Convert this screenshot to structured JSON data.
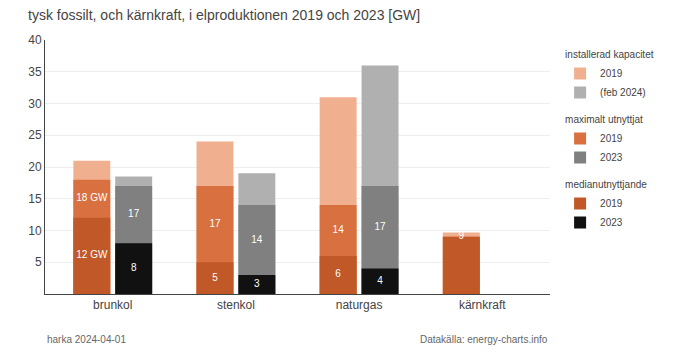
{
  "chart_data": {
    "type": "bar",
    "title": "tysk fossilt, och kärnkraft, i elproduktionen 2019 och 2023 [GW]",
    "categories": [
      "brunkol",
      "stenkol",
      "naturgas",
      "kärnkraft"
    ],
    "series": [
      {
        "group": "installerad kapacitet",
        "name": "2019",
        "color": "#f0b090",
        "values": [
          21,
          24,
          31,
          9.7
        ]
      },
      {
        "group": "maximalt utnyttjat",
        "name": "2019",
        "color": "#d97040",
        "values": [
          18,
          17,
          14,
          9
        ],
        "value_labels": [
          "18 GW",
          "17",
          "14",
          "9"
        ]
      },
      {
        "group": "medianutnyttjande",
        "name": "2019",
        "color": "#c05828",
        "values": [
          12,
          5,
          6,
          9
        ],
        "value_labels": [
          "12 GW",
          "5",
          "6",
          null
        ]
      },
      {
        "group": "installerad kapacitet",
        "name": "(feb 2024)",
        "color": "#b0b0b0",
        "values": [
          18.5,
          19,
          36,
          0
        ]
      },
      {
        "group": "maximalt utnyttjat",
        "name": "2023",
        "color": "#808080",
        "values": [
          17,
          14,
          17,
          0
        ],
        "value_labels": [
          "17",
          "14",
          "17",
          null
        ]
      },
      {
        "group": "medianutnyttjande",
        "name": "2023",
        "color": "#111111",
        "values": [
          8,
          3,
          4,
          0
        ],
        "value_labels": [
          "8",
          "3",
          "4",
          null
        ]
      }
    ],
    "stacked": false,
    "data_labels": true,
    "ylim": [
      0,
      40
    ],
    "yticks": [
      5,
      10,
      15,
      20,
      25,
      30,
      35,
      40
    ],
    "grid": true,
    "legend": "right",
    "annotations": [
      "harka 2024-04-01",
      "Datakälla: energy-charts.info"
    ]
  }
}
